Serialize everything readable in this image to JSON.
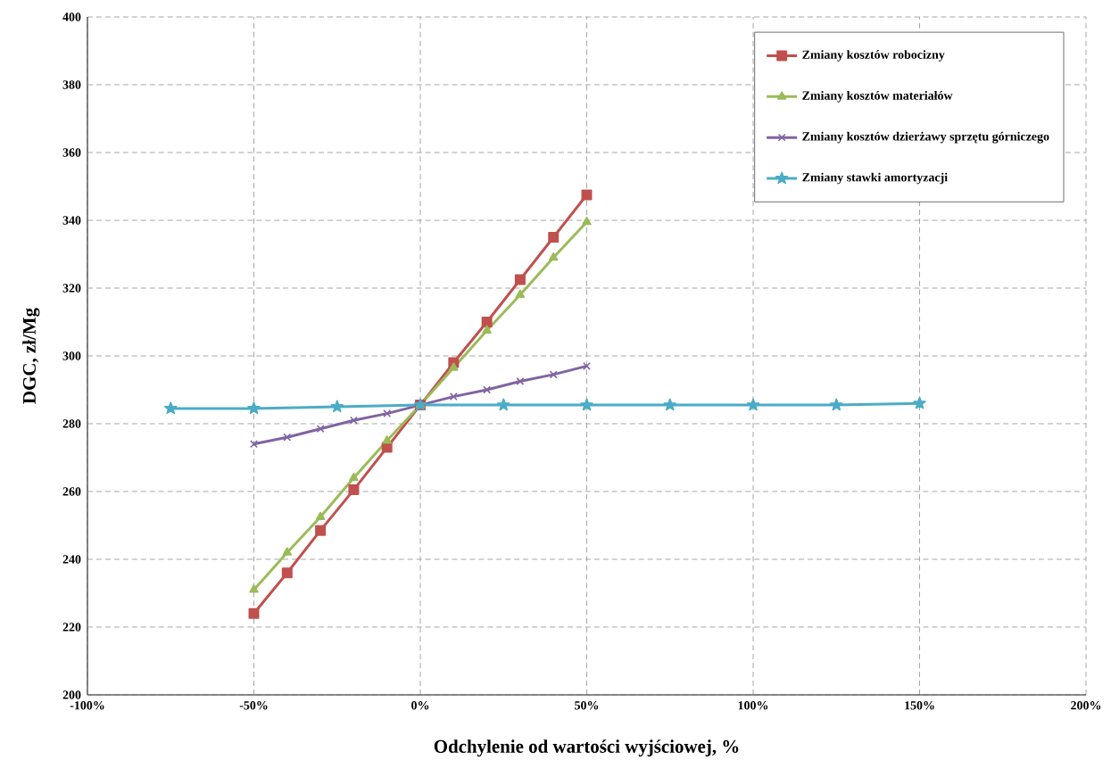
{
  "chart_data": {
    "type": "line",
    "xlabel": "Odchylenie od wartości wyjściowej, %",
    "ylabel": "DGC, zł/Mg",
    "xlim": [
      -100,
      200
    ],
    "ylim": [
      200,
      400
    ],
    "xticks": [
      {
        "value": -100,
        "label": "-100%"
      },
      {
        "value": -50,
        "label": "-50%"
      },
      {
        "value": 0,
        "label": "0%"
      },
      {
        "value": 50,
        "label": "50%"
      },
      {
        "value": 100,
        "label": "100%"
      },
      {
        "value": 150,
        "label": "150%"
      },
      {
        "value": 200,
        "label": "200%"
      }
    ],
    "yticks": [
      200,
      220,
      240,
      260,
      280,
      300,
      320,
      340,
      360,
      380,
      400
    ],
    "grid": true,
    "legend": "top right",
    "line_style": "solid",
    "series": [
      {
        "name": "Zmiany kosztów robocizny",
        "color": "#c0504d",
        "marker": "square",
        "x": [
          -50,
          -40,
          -30,
          -20,
          -10,
          0,
          10,
          20,
          30,
          40,
          50
        ],
        "values": [
          224,
          236,
          248.5,
          260.5,
          273,
          285.5,
          298,
          310,
          322.5,
          335,
          347.5
        ]
      },
      {
        "name": "Zmiany kosztów materiałów",
        "color": "#9bbb59",
        "marker": "triangle",
        "x": [
          -50,
          -40,
          -30,
          -20,
          -10,
          0,
          10,
          20,
          30,
          40,
          50
        ],
        "values": [
          231,
          242,
          252.5,
          264,
          275,
          285.5,
          296.5,
          307.5,
          318,
          329,
          339.5
        ]
      },
      {
        "name": "Zmiany kosztów dzierżawy sprzętu górniczego",
        "color": "#8064a2",
        "marker": "cross",
        "x": [
          -50,
          -40,
          -30,
          -20,
          -10,
          0,
          10,
          20,
          30,
          40,
          50
        ],
        "values": [
          274,
          276,
          278.5,
          281,
          283,
          285.5,
          288,
          290,
          292.5,
          294.5,
          297
        ]
      },
      {
        "name": "Zmiany stawki amortyzacji",
        "color": "#4bacc6",
        "marker": "star",
        "x": [
          -75,
          -50,
          -25,
          0,
          25,
          50,
          75,
          100,
          125,
          150
        ],
        "values": [
          284.5,
          284.5,
          285,
          285.5,
          285.5,
          285.5,
          285.5,
          285.5,
          285.5,
          286
        ]
      }
    ]
  }
}
